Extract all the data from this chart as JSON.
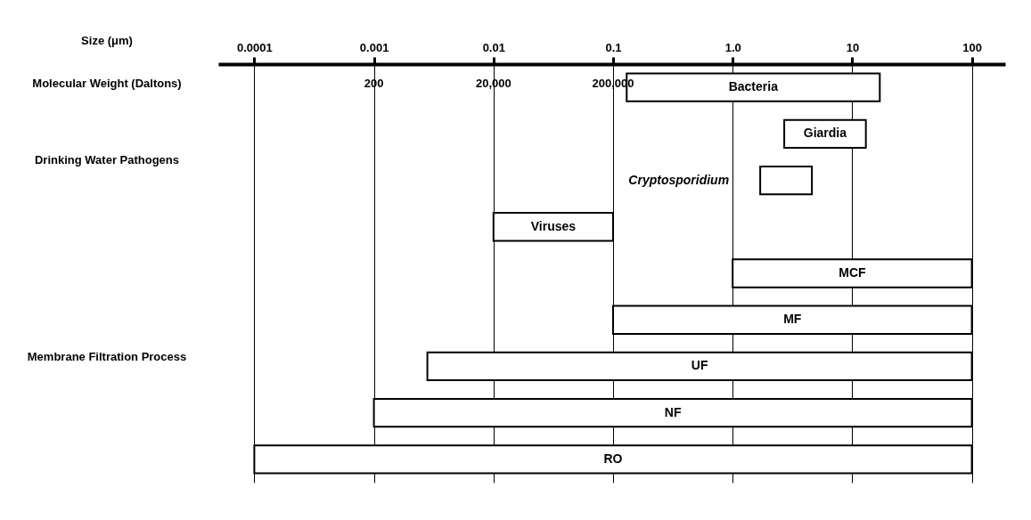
{
  "chart_data": {
    "type": "bar",
    "orientation": "horizontal",
    "categories": [
      "Bacteria",
      "Giardia",
      "Cryptosporidium",
      "Viruses",
      "MCF",
      "MF",
      "UF",
      "NF",
      "RO"
    ],
    "base": [
      0.13,
      2.7,
      1.7,
      0.01,
      1,
      0.1,
      0.0028,
      0.001,
      0.0001
    ],
    "values": [
      16.87,
      10.3,
      2.9,
      0.09,
      99,
      99.9,
      99.9972,
      99.999,
      99.9999
    ],
    "color": "#ffffff",
    "xlim": [
      5e-05,
      190
    ],
    "xticks": [
      0.0001,
      0.001,
      0.01,
      0.1,
      {
        "value": 1,
        "label": "1.0"
      },
      10,
      100
    ],
    "log": "x",
    "grid": "x",
    "annotations": [
      "Size (μm)",
      "Molecular Weight (Daltons)",
      "200",
      "20,000",
      "200,000",
      "Drinking Water Pathogens",
      "Membrane Filtration Process"
    ]
  }
}
